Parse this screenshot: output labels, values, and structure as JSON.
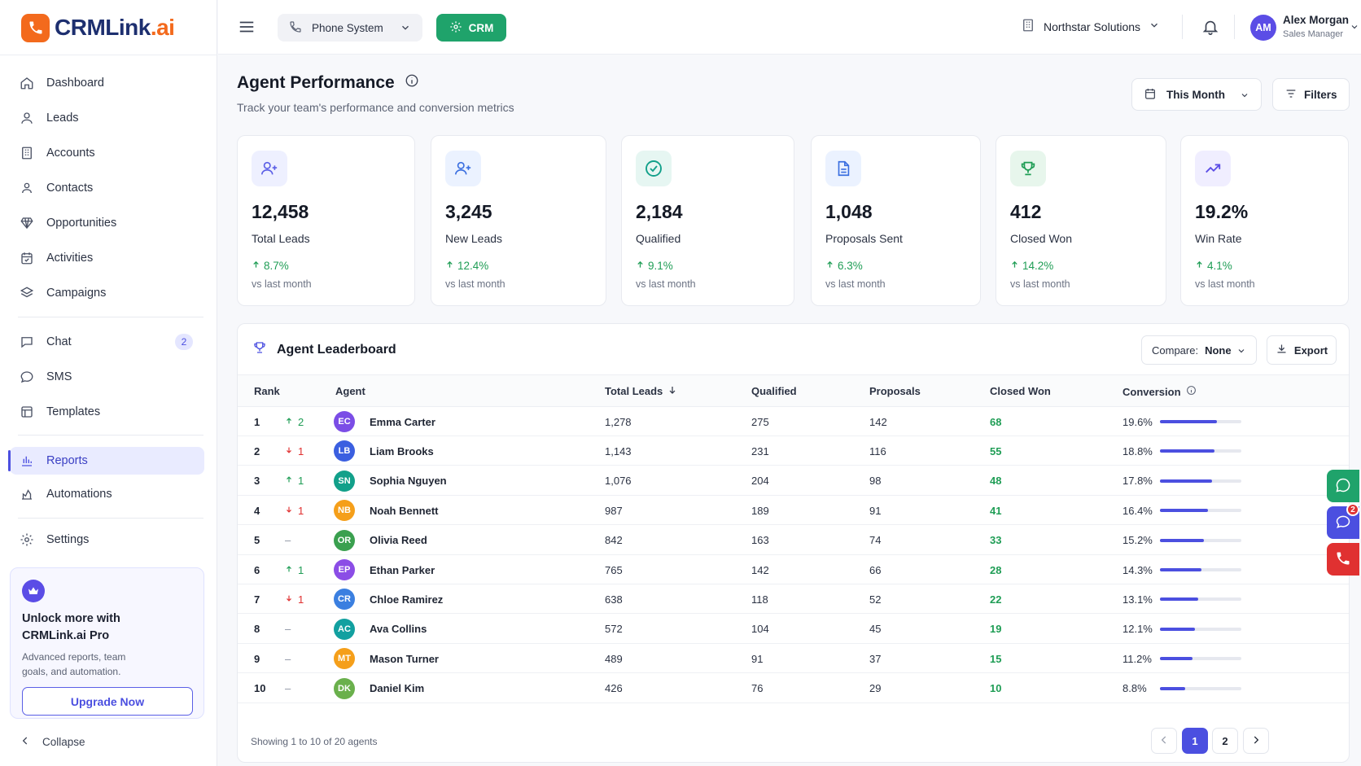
{
  "brand": {
    "name_main": "CRMLink",
    "name_suffix": ".ai"
  },
  "sidebar": {
    "items": [
      {
        "label": "Dashboard",
        "icon": "home-icon"
      },
      {
        "label": "Leads",
        "icon": "user-icon"
      },
      {
        "label": "Accounts",
        "icon": "building-icon"
      },
      {
        "label": "Contacts",
        "icon": "contact-icon"
      },
      {
        "label": "Opportunities",
        "icon": "diamond-icon"
      },
      {
        "label": "Activities",
        "icon": "calendar-check-icon"
      },
      {
        "label": "Campaigns",
        "icon": "layers-icon"
      },
      {
        "label": "Chat",
        "icon": "chat-icon",
        "badge": "2"
      },
      {
        "label": "SMS",
        "icon": "message-icon"
      },
      {
        "label": "Templates",
        "icon": "template-icon"
      },
      {
        "label": "Reports",
        "icon": "bar-chart-icon",
        "active": true
      },
      {
        "label": "Automations",
        "icon": "automation-icon"
      },
      {
        "label": "Settings",
        "icon": "gear-icon"
      }
    ],
    "upgrade": {
      "title": "Unlock more with CRMLink.ai Pro",
      "description": "Advanced reports, team goals, and automation.",
      "button": "Upgrade Now"
    },
    "collapse_label": "Collapse"
  },
  "topbar": {
    "phone_system": "Phone System",
    "crm": "CRM",
    "organization": "Northstar Solutions",
    "user": {
      "initials": "AM",
      "name": "Alex Morgan",
      "role": "Sales Manager"
    }
  },
  "page": {
    "title": "Agent Performance",
    "subtitle": "Track your team's performance and conversion metrics",
    "period": "This Month",
    "filters": "Filters"
  },
  "kpis": [
    {
      "value": "12,458",
      "label": "Total Leads",
      "change": "8.7%",
      "vs": "vs last month",
      "icon": "user-plus-icon",
      "color": "#5b5fe6",
      "bg": "#eef0ff"
    },
    {
      "value": "3,245",
      "label": "New Leads",
      "change": "12.4%",
      "vs": "vs last month",
      "icon": "user-plus-icon",
      "color": "#3b6fe0",
      "bg": "#ebf2ff"
    },
    {
      "value": "2,184",
      "label": "Qualified",
      "change": "9.1%",
      "vs": "vs last month",
      "icon": "check-circle-icon",
      "color": "#12a08a",
      "bg": "#e6f6f2"
    },
    {
      "value": "1,048",
      "label": "Proposals Sent",
      "change": "6.3%",
      "vs": "vs last month",
      "icon": "document-icon",
      "color": "#3b6fe0",
      "bg": "#ebf2ff"
    },
    {
      "value": "412",
      "label": "Closed Won",
      "change": "14.2%",
      "vs": "vs last month",
      "icon": "trophy-icon",
      "color": "#1f9d55",
      "bg": "#e7f6ec"
    },
    {
      "value": "19.2%",
      "label": "Win Rate",
      "change": "4.1%",
      "vs": "vs last month",
      "icon": "trend-up-icon",
      "color": "#5b4de6",
      "bg": "#f0eeff"
    }
  ],
  "leaderboard": {
    "title": "Agent Leaderboard",
    "compare_label": "Compare:",
    "compare_value": "None",
    "export": "Export",
    "columns": [
      "Rank",
      "Agent",
      "Total Leads",
      "Qualified",
      "Proposals",
      "Closed Won",
      "Conversion"
    ],
    "rows": [
      {
        "rank": "1",
        "move": "up",
        "move_val": "2",
        "initials": "EC",
        "name": "Emma Carter",
        "avatar_color": "#7b4de6",
        "total": "1,278",
        "qualified": "275",
        "proposals": "142",
        "won": "68",
        "conversion": "19.6%",
        "pct": 19.6
      },
      {
        "rank": "2",
        "move": "down",
        "move_val": "1",
        "initials": "LB",
        "name": "Liam Brooks",
        "avatar_color": "#3b5fe0",
        "total": "1,143",
        "qualified": "231",
        "proposals": "116",
        "won": "55",
        "conversion": "18.8%",
        "pct": 18.8
      },
      {
        "rank": "3",
        "move": "up",
        "move_val": "1",
        "initials": "SN",
        "name": "Sophia Nguyen",
        "avatar_color": "#12a08a",
        "total": "1,076",
        "qualified": "204",
        "proposals": "98",
        "won": "48",
        "conversion": "17.8%",
        "pct": 17.8
      },
      {
        "rank": "4",
        "move": "down",
        "move_val": "1",
        "initials": "NB",
        "name": "Noah Bennett",
        "avatar_color": "#f59f1a",
        "total": "987",
        "qualified": "189",
        "proposals": "91",
        "won": "41",
        "conversion": "16.4%",
        "pct": 16.4
      },
      {
        "rank": "5",
        "move": "flat",
        "move_val": "–",
        "initials": "OR",
        "name": "Olivia Reed",
        "avatar_color": "#3aa04f",
        "total": "842",
        "qualified": "163",
        "proposals": "74",
        "won": "33",
        "conversion": "15.2%",
        "pct": 15.2
      },
      {
        "rank": "6",
        "move": "up",
        "move_val": "1",
        "initials": "EP",
        "name": "Ethan Parker",
        "avatar_color": "#8b4de6",
        "total": "765",
        "qualified": "142",
        "proposals": "66",
        "won": "28",
        "conversion": "14.3%",
        "pct": 14.3
      },
      {
        "rank": "7",
        "move": "down",
        "move_val": "1",
        "initials": "CR",
        "name": "Chloe Ramirez",
        "avatar_color": "#3b7fe0",
        "total": "638",
        "qualified": "118",
        "proposals": "52",
        "won": "22",
        "conversion": "13.1%",
        "pct": 13.1
      },
      {
        "rank": "8",
        "move": "flat",
        "move_val": "–",
        "initials": "AC",
        "name": "Ava Collins",
        "avatar_color": "#12a0a0",
        "total": "572",
        "qualified": "104",
        "proposals": "45",
        "won": "19",
        "conversion": "12.1%",
        "pct": 12.1
      },
      {
        "rank": "9",
        "move": "flat",
        "move_val": "–",
        "initials": "MT",
        "name": "Mason Turner",
        "avatar_color": "#f59f1a",
        "total": "489",
        "qualified": "91",
        "proposals": "37",
        "won": "15",
        "conversion": "11.2%",
        "pct": 11.2
      },
      {
        "rank": "10",
        "move": "flat",
        "move_val": "–",
        "initials": "DK",
        "name": "Daniel Kim",
        "avatar_color": "#6ab04c",
        "total": "426",
        "qualified": "76",
        "proposals": "29",
        "won": "10",
        "conversion": "8.8%",
        "pct": 8.8
      }
    ],
    "footer": "Showing 1 to 10 of 20 agents",
    "pages": [
      "1",
      "2"
    ],
    "current_page": "1"
  },
  "floating": {
    "sms_badge": "2"
  },
  "colors": {
    "accent": "#4b4fe0",
    "brand_orange": "#f36a1d",
    "success": "#1f9d55",
    "danger": "#e03131",
    "crm_green": "#1fa36b"
  }
}
